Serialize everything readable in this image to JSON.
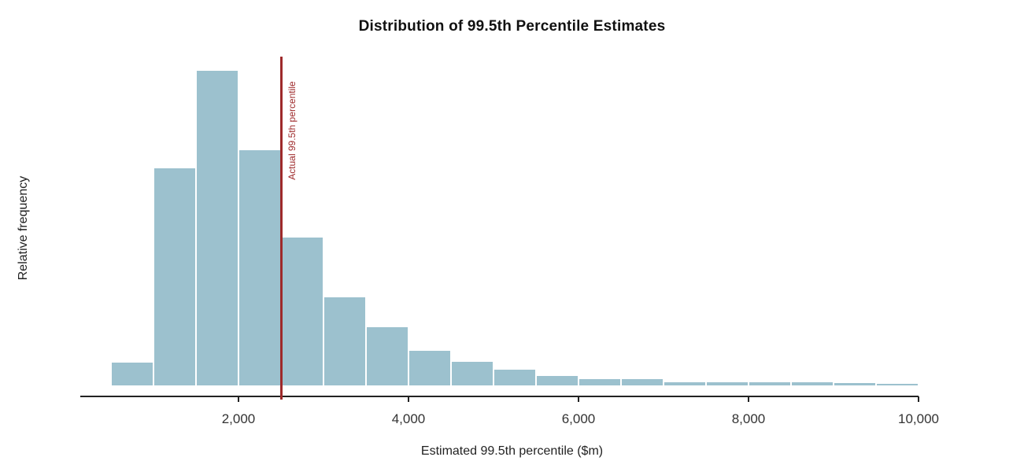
{
  "title": "Distribution of 99.5th Percentile Estimates",
  "colors": {
    "background": "#ffffff",
    "bar_fill": "#9cc1ce",
    "bar_border": "#ffffff",
    "annotation_red": "#9e2a2b",
    "axis_line": "#222222",
    "tick_label": "#333333",
    "title_text": "#111111",
    "axis_label": "#222222"
  },
  "chart_data": {
    "type": "bar",
    "subtype": "histogram",
    "title": "Distribution of 99.5th Percentile Estimates",
    "xlabel": "Estimated 99.5th percentile ($m)",
    "ylabel": "Relative frequency",
    "grid": false,
    "legend": false,
    "y_axis": {
      "ticks_visible": false,
      "normalization": "tallest bar = 1.0"
    },
    "xlim": [
      140,
      10000
    ],
    "bin_width": 500,
    "x_ticks": [
      {
        "value": 2000,
        "label": "2,000"
      },
      {
        "value": 4000,
        "label": "4,000"
      },
      {
        "value": 6000,
        "label": "6,000"
      },
      {
        "value": 8000,
        "label": "8,000"
      },
      {
        "value": 10000,
        "label": "10,000"
      }
    ],
    "bins": [
      {
        "start": 500,
        "end": 1000,
        "rel_frequency": 0.073
      },
      {
        "start": 1000,
        "end": 1500,
        "rel_frequency": 0.69
      },
      {
        "start": 1500,
        "end": 2000,
        "rel_frequency": 1.0
      },
      {
        "start": 2000,
        "end": 2500,
        "rel_frequency": 0.748
      },
      {
        "start": 2500,
        "end": 3000,
        "rel_frequency": 0.47
      },
      {
        "start": 3000,
        "end": 3500,
        "rel_frequency": 0.28
      },
      {
        "start": 3500,
        "end": 4000,
        "rel_frequency": 0.186
      },
      {
        "start": 4000,
        "end": 4500,
        "rel_frequency": 0.11
      },
      {
        "start": 4500,
        "end": 5000,
        "rel_frequency": 0.075
      },
      {
        "start": 5000,
        "end": 5500,
        "rel_frequency": 0.05
      },
      {
        "start": 5500,
        "end": 6000,
        "rel_frequency": 0.029
      },
      {
        "start": 6000,
        "end": 6500,
        "rel_frequency": 0.019
      },
      {
        "start": 6500,
        "end": 7000,
        "rel_frequency": 0.019
      },
      {
        "start": 7000,
        "end": 7500,
        "rel_frequency": 0.011
      },
      {
        "start": 7500,
        "end": 8000,
        "rel_frequency": 0.01
      },
      {
        "start": 8000,
        "end": 8500,
        "rel_frequency": 0.01
      },
      {
        "start": 8500,
        "end": 9000,
        "rel_frequency": 0.01
      },
      {
        "start": 9000,
        "end": 9500,
        "rel_frequency": 0.007
      },
      {
        "start": 9500,
        "end": 10000,
        "rel_frequency": 0.005
      }
    ],
    "annotation": {
      "label": "Actual 99.5th percentile",
      "x": 2500
    }
  }
}
